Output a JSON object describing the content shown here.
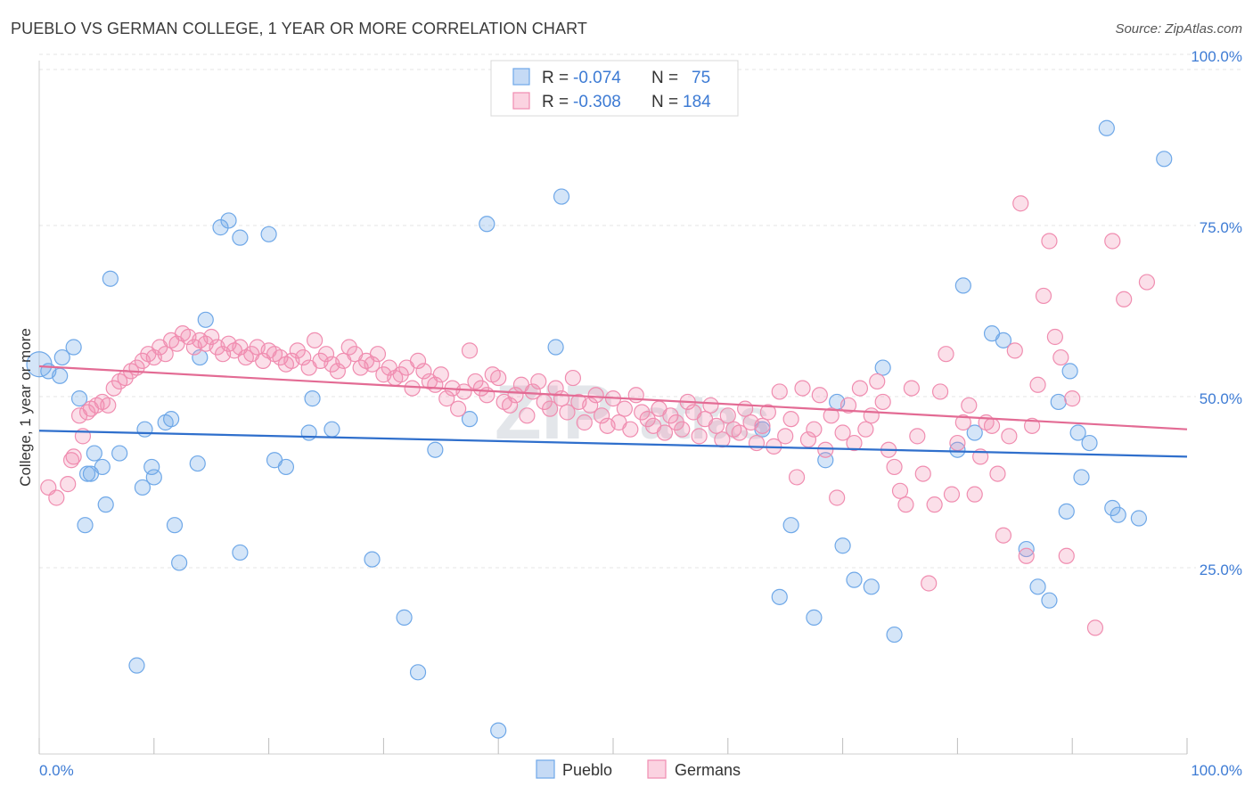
{
  "title": "PUEBLO VS GERMAN COLLEGE, 1 YEAR OR MORE CORRELATION CHART",
  "source": "Source: ZipAtlas.com",
  "watermark": {
    "part1": "ZIP",
    "part2": "atlas"
  },
  "legend_top": {
    "r_label": "R =",
    "n_label": "N =",
    "rows": [
      {
        "series": "Pueblo",
        "r": "-0.074",
        "n": "75",
        "color": "#6fa8e8"
      },
      {
        "series": "Germans",
        "r": "-0.308",
        "n": "184",
        "color": "#f08db0"
      }
    ]
  },
  "chart_data": {
    "type": "scatter",
    "xlabel": "",
    "ylabel": "College, 1 year or more",
    "xlim": [
      0,
      100
    ],
    "ylim": [
      0,
      100
    ],
    "x_tick_labels": [
      "0.0%",
      "100.0%"
    ],
    "y_tick_labels": [
      "25.0%",
      "50.0%",
      "75.0%",
      "100.0%"
    ],
    "y_ticks": [
      25,
      50,
      75,
      100
    ],
    "grid": true,
    "legend": "bottom-center",
    "series": [
      {
        "name": "Pueblo",
        "color": "#6fa8e8",
        "trend": [
          [
            0,
            48.8
          ],
          [
            100,
            45.0
          ]
        ],
        "points": [
          [
            0.0,
            58.5
          ],
          [
            0.8,
            57.5
          ],
          [
            1.8,
            56.8
          ],
          [
            2.0,
            59.5
          ],
          [
            3.0,
            61.0
          ],
          [
            3.5,
            53.5
          ],
          [
            4.0,
            35.0
          ],
          [
            4.2,
            42.5
          ],
          [
            4.5,
            42.5
          ],
          [
            4.8,
            45.5
          ],
          [
            5.5,
            43.5
          ],
          [
            5.8,
            38.0
          ],
          [
            6.2,
            71.0
          ],
          [
            7.0,
            45.5
          ],
          [
            8.5,
            14.5
          ],
          [
            9.0,
            40.5
          ],
          [
            9.2,
            49.0
          ],
          [
            9.8,
            43.5
          ],
          [
            10.0,
            42.0
          ],
          [
            11.0,
            50.0
          ],
          [
            11.5,
            50.5
          ],
          [
            11.8,
            35.0
          ],
          [
            12.2,
            29.5
          ],
          [
            13.8,
            44.0
          ],
          [
            14.0,
            59.5
          ],
          [
            14.5,
            65.0
          ],
          [
            15.8,
            78.5
          ],
          [
            16.5,
            79.5
          ],
          [
            17.5,
            31.0
          ],
          [
            17.5,
            77.0
          ],
          [
            20.0,
            77.5
          ],
          [
            20.5,
            44.5
          ],
          [
            21.5,
            43.5
          ],
          [
            23.5,
            48.5
          ],
          [
            23.8,
            53.5
          ],
          [
            25.5,
            49.0
          ],
          [
            29.0,
            30.0
          ],
          [
            31.8,
            21.5
          ],
          [
            33.0,
            13.5
          ],
          [
            34.5,
            46.0
          ],
          [
            37.5,
            50.5
          ],
          [
            39.0,
            79.0
          ],
          [
            40.0,
            5.0
          ],
          [
            45.0,
            61.0
          ],
          [
            45.5,
            83.0
          ],
          [
            63.0,
            49.0
          ],
          [
            64.5,
            24.5
          ],
          [
            65.5,
            35.0
          ],
          [
            67.5,
            21.5
          ],
          [
            68.5,
            44.5
          ],
          [
            69.5,
            53.0
          ],
          [
            70.0,
            32.0
          ],
          [
            71.0,
            27.0
          ],
          [
            72.5,
            26.0
          ],
          [
            73.5,
            58.0
          ],
          [
            74.5,
            19.0
          ],
          [
            80.0,
            46.0
          ],
          [
            80.5,
            70.0
          ],
          [
            81.5,
            48.5
          ],
          [
            83.0,
            63.0
          ],
          [
            84.0,
            62.0
          ],
          [
            86.0,
            31.5
          ],
          [
            87.0,
            26.0
          ],
          [
            88.0,
            24.0
          ],
          [
            88.8,
            53.0
          ],
          [
            89.5,
            37.0
          ],
          [
            89.8,
            57.5
          ],
          [
            90.5,
            48.5
          ],
          [
            90.8,
            42.0
          ],
          [
            91.5,
            47.0
          ],
          [
            93.0,
            93.0
          ],
          [
            93.5,
            37.5
          ],
          [
            94.0,
            36.5
          ],
          [
            95.8,
            36.0
          ],
          [
            98.0,
            88.5
          ]
        ]
      },
      {
        "name": "Germans",
        "color": "#f08db0",
        "trend": [
          [
            0,
            58.2
          ],
          [
            100,
            49.0
          ]
        ],
        "points": [
          [
            0.8,
            40.5
          ],
          [
            1.5,
            39.0
          ],
          [
            2.5,
            41.0
          ],
          [
            2.8,
            44.5
          ],
          [
            3.0,
            45.0
          ],
          [
            3.5,
            51.0
          ],
          [
            3.8,
            48.0
          ],
          [
            4.2,
            51.5
          ],
          [
            4.5,
            52.0
          ],
          [
            5.0,
            52.5
          ],
          [
            5.5,
            53.0
          ],
          [
            6.0,
            52.5
          ],
          [
            6.5,
            55.0
          ],
          [
            7.0,
            56.0
          ],
          [
            7.5,
            56.5
          ],
          [
            8.0,
            57.5
          ],
          [
            8.5,
            58.0
          ],
          [
            9.0,
            59.0
          ],
          [
            9.5,
            60.0
          ],
          [
            10.0,
            59.5
          ],
          [
            10.5,
            61.0
          ],
          [
            11.0,
            60.0
          ],
          [
            11.5,
            62.0
          ],
          [
            12.0,
            61.5
          ],
          [
            12.5,
            63.0
          ],
          [
            13.0,
            62.5
          ],
          [
            13.5,
            61.0
          ],
          [
            14.0,
            62.0
          ],
          [
            14.5,
            61.5
          ],
          [
            15.0,
            62.5
          ],
          [
            15.5,
            61.0
          ],
          [
            16.0,
            60.0
          ],
          [
            16.5,
            61.5
          ],
          [
            17.0,
            60.5
          ],
          [
            17.5,
            61.0
          ],
          [
            18.0,
            59.5
          ],
          [
            18.5,
            60.0
          ],
          [
            19.0,
            61.0
          ],
          [
            19.5,
            59.0
          ],
          [
            20.0,
            60.5
          ],
          [
            20.5,
            60.0
          ],
          [
            21.0,
            59.5
          ],
          [
            21.5,
            58.5
          ],
          [
            22.0,
            59.0
          ],
          [
            22.5,
            60.5
          ],
          [
            23.0,
            59.5
          ],
          [
            23.5,
            58.0
          ],
          [
            24.0,
            62.0
          ],
          [
            24.5,
            59.0
          ],
          [
            25.0,
            60.0
          ],
          [
            25.5,
            58.5
          ],
          [
            26.0,
            57.5
          ],
          [
            26.5,
            59.0
          ],
          [
            27.0,
            61.0
          ],
          [
            27.5,
            60.0
          ],
          [
            28.0,
            58.0
          ],
          [
            28.5,
            59.0
          ],
          [
            29.0,
            58.5
          ],
          [
            29.5,
            60.0
          ],
          [
            30.0,
            57.0
          ],
          [
            30.5,
            58.0
          ],
          [
            31.0,
            56.5
          ],
          [
            31.5,
            57.0
          ],
          [
            32.0,
            58.0
          ],
          [
            32.5,
            55.0
          ],
          [
            33.0,
            59.0
          ],
          [
            33.5,
            57.5
          ],
          [
            34.0,
            56.0
          ],
          [
            34.5,
            55.5
          ],
          [
            35.0,
            57.0
          ],
          [
            35.5,
            53.5
          ],
          [
            36.0,
            55.0
          ],
          [
            36.5,
            52.0
          ],
          [
            37.0,
            54.5
          ],
          [
            37.5,
            60.5
          ],
          [
            38.0,
            56.0
          ],
          [
            38.5,
            55.0
          ],
          [
            39.0,
            54.0
          ],
          [
            39.5,
            57.0
          ],
          [
            40.0,
            56.5
          ],
          [
            40.5,
            53.0
          ],
          [
            41.0,
            52.5
          ],
          [
            41.5,
            54.0
          ],
          [
            42.0,
            55.5
          ],
          [
            42.5,
            51.0
          ],
          [
            43.0,
            54.5
          ],
          [
            43.5,
            56.0
          ],
          [
            44.0,
            53.0
          ],
          [
            44.5,
            52.0
          ],
          [
            45.0,
            55.0
          ],
          [
            45.5,
            53.5
          ],
          [
            46.0,
            51.5
          ],
          [
            46.5,
            56.5
          ],
          [
            47.0,
            53.0
          ],
          [
            47.5,
            50.0
          ],
          [
            48.0,
            52.5
          ],
          [
            48.5,
            54.0
          ],
          [
            49.0,
            51.0
          ],
          [
            49.5,
            49.5
          ],
          [
            50.0,
            53.5
          ],
          [
            50.5,
            50.0
          ],
          [
            51.0,
            52.0
          ],
          [
            51.5,
            49.0
          ],
          [
            52.0,
            54.0
          ],
          [
            52.5,
            51.5
          ],
          [
            53.0,
            50.5
          ],
          [
            53.5,
            49.5
          ],
          [
            54.0,
            52.0
          ],
          [
            54.5,
            48.5
          ],
          [
            55.0,
            51.0
          ],
          [
            55.5,
            50.0
          ],
          [
            56.0,
            49.0
          ],
          [
            56.5,
            53.0
          ],
          [
            57.0,
            51.5
          ],
          [
            57.5,
            48.0
          ],
          [
            58.0,
            50.5
          ],
          [
            58.5,
            52.5
          ],
          [
            59.0,
            49.5
          ],
          [
            59.5,
            47.5
          ],
          [
            60.0,
            51.0
          ],
          [
            60.5,
            49.0
          ],
          [
            61.0,
            48.5
          ],
          [
            61.5,
            52.0
          ],
          [
            62.0,
            50.0
          ],
          [
            62.5,
            47.0
          ],
          [
            63.0,
            49.5
          ],
          [
            63.5,
            51.5
          ],
          [
            64.0,
            46.5
          ],
          [
            64.5,
            54.5
          ],
          [
            65.0,
            48.0
          ],
          [
            65.5,
            50.5
          ],
          [
            66.0,
            42.0
          ],
          [
            66.5,
            55.0
          ],
          [
            67.0,
            47.5
          ],
          [
            67.5,
            49.0
          ],
          [
            68.0,
            54.0
          ],
          [
            68.5,
            46.0
          ],
          [
            69.0,
            51.0
          ],
          [
            69.5,
            39.0
          ],
          [
            70.0,
            48.5
          ],
          [
            70.5,
            52.5
          ],
          [
            71.0,
            47.0
          ],
          [
            71.5,
            55.0
          ],
          [
            72.0,
            49.0
          ],
          [
            72.5,
            51.0
          ],
          [
            73.0,
            56.0
          ],
          [
            73.5,
            53.0
          ],
          [
            74.0,
            46.0
          ],
          [
            74.5,
            43.5
          ],
          [
            75.0,
            40.0
          ],
          [
            75.5,
            38.0
          ],
          [
            76.0,
            55.0
          ],
          [
            76.5,
            48.0
          ],
          [
            77.0,
            42.5
          ],
          [
            77.5,
            26.5
          ],
          [
            78.0,
            38.0
          ],
          [
            78.5,
            54.5
          ],
          [
            79.0,
            60.0
          ],
          [
            79.5,
            39.5
          ],
          [
            80.0,
            47.0
          ],
          [
            80.5,
            50.0
          ],
          [
            81.0,
            52.5
          ],
          [
            81.5,
            39.5
          ],
          [
            82.0,
            45.0
          ],
          [
            82.5,
            50.0
          ],
          [
            83.0,
            49.5
          ],
          [
            83.5,
            42.5
          ],
          [
            84.0,
            33.5
          ],
          [
            84.5,
            48.0
          ],
          [
            85.0,
            60.5
          ],
          [
            85.5,
            82.0
          ],
          [
            86.0,
            30.5
          ],
          [
            86.5,
            49.5
          ],
          [
            87.0,
            55.5
          ],
          [
            87.5,
            68.5
          ],
          [
            88.0,
            76.5
          ],
          [
            88.5,
            62.5
          ],
          [
            89.0,
            59.5
          ],
          [
            89.5,
            30.5
          ],
          [
            90.0,
            53.5
          ],
          [
            92.0,
            20.0
          ],
          [
            93.5,
            76.5
          ],
          [
            94.5,
            68.0
          ],
          [
            96.5,
            70.5
          ]
        ]
      }
    ]
  }
}
